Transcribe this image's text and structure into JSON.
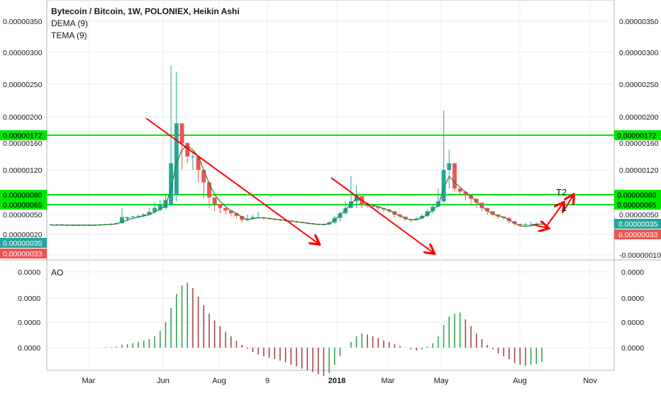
{
  "header": {
    "title": "Bytecoin / Bitcoin, 1W, POLONIEX, Heikin Ashi",
    "indicator_1": "DEMA (9)",
    "indicator_2": "TEMA (9)"
  },
  "ao_panel": {
    "label": "AO"
  },
  "colors": {
    "up": "#26a69a",
    "down": "#ef5350",
    "ma_line": "#2e7d32",
    "hline": "#00e600",
    "arrow": "#ff0000",
    "grid": "#e9edf2",
    "axis_text": "#131722"
  },
  "chart_data": [
    {
      "type": "candlestick",
      "name": "price",
      "ylim": [
        -1e-07,
        3.75e-06
      ],
      "y_ticks": [
        "0.00000350",
        "0.00000300",
        "0.00000250",
        "0.00000200",
        "0.00000160",
        "0.00000120",
        "0.00000080",
        "0.00000050",
        "0.00000020",
        "-0.00000010"
      ],
      "y_tick_values": [
        3.5e-06,
        3e-06,
        2.5e-06,
        2e-06,
        1.6e-06,
        1.2e-06,
        8e-07,
        5e-07,
        2e-07,
        -1e-07
      ],
      "x_ticks": [
        "Mar",
        "Jun",
        "Aug",
        "9",
        "2018",
        "Mar",
        "May",
        "Aug",
        "Nov"
      ],
      "horizontal_levels": [
        {
          "value": 1.72e-06,
          "label": "0.00000172"
        },
        {
          "value": 8e-07,
          "label": "0.00000080"
        },
        {
          "value": 6.5e-07,
          "label": "0.00000065"
        }
      ],
      "price_badges": [
        {
          "value": 3.5e-07,
          "label": "0.00000035",
          "kind": "up"
        },
        {
          "value": 3.3e-07,
          "label": "0.00000033",
          "kind": "down"
        }
      ],
      "annotations": [
        "T2",
        "1"
      ],
      "candles": [
        [
          3.4e-07,
          3.5e-07,
          3.6e-07,
          3.3e-07
        ],
        [
          3.5e-07,
          3.5e-07,
          3.6e-07,
          3.4e-07
        ],
        [
          3.5e-07,
          3.4e-07,
          3.6e-07,
          3.3e-07
        ],
        [
          3.4e-07,
          3.4e-07,
          3.5e-07,
          3.3e-07
        ],
        [
          3.4e-07,
          3.4e-07,
          3.5e-07,
          3.3e-07
        ],
        [
          3.4e-07,
          3.4e-07,
          3.5e-07,
          3.3e-07
        ],
        [
          3.4e-07,
          3.4e-07,
          3.5e-07,
          3.3e-07
        ],
        [
          3.4e-07,
          3.4e-07,
          3.5e-07,
          3.3e-07
        ],
        [
          3.4e-07,
          3.4e-07,
          3.5e-07,
          3.3e-07
        ],
        [
          3.4e-07,
          3.5e-07,
          3.6e-07,
          3.3e-07
        ],
        [
          3.5e-07,
          3.5e-07,
          3.6e-07,
          3.4e-07
        ],
        [
          3.5e-07,
          3.6e-07,
          3.7e-07,
          3.4e-07
        ],
        [
          3.6e-07,
          3.7e-07,
          3.8e-07,
          3.5e-07
        ],
        [
          3.7e-07,
          4.6e-07,
          6e-07,
          3.6e-07
        ],
        [
          4.4e-07,
          4.6e-07,
          4.7e-07,
          4e-07
        ],
        [
          4.6e-07,
          4.7e-07,
          4.8e-07,
          4.4e-07
        ],
        [
          4.7e-07,
          4.8e-07,
          5e-07,
          4.5e-07
        ],
        [
          4.8e-07,
          5e-07,
          5.2e-07,
          4.6e-07
        ],
        [
          5e-07,
          5.4e-07,
          6e-07,
          4.8e-07
        ],
        [
          5.4e-07,
          6e-07,
          6.9e-07,
          5.1e-07
        ],
        [
          5.7e-07,
          6.4e-07,
          7.2e-07,
          5.5e-07
        ],
        [
          6e-07,
          7.2e-07,
          8e-07,
          5.8e-07
        ],
        [
          6.4e-07,
          1.3e-06,
          2.8e-06,
          6.2e-07
        ],
        [
          8e-07,
          1.9e-06,
          2.7e-06,
          7e-07
        ],
        [
          1.9e-06,
          1.6e-06,
          1.7e-06,
          1.2e-06
        ],
        [
          1.6e-06,
          1.4e-06,
          1.55e-06,
          1.3e-06
        ],
        [
          1.4e-06,
          1.4e-06,
          1.45e-06,
          1.2e-06
        ],
        [
          1.4e-06,
          1.2e-06,
          1.3e-06,
          1e-06
        ],
        [
          1.2e-06,
          1e-06,
          1.1e-06,
          7.5e-07
        ],
        [
          1e-06,
          7.6e-07,
          8.5e-07,
          6e-07
        ],
        [
          7.6e-07,
          6.6e-07,
          7e-07,
          5.5e-07
        ],
        [
          6.6e-07,
          6e-07,
          6.5e-07,
          5.2e-07
        ],
        [
          6e-07,
          5.6e-07,
          6e-07,
          5e-07
        ],
        [
          5.6e-07,
          5.2e-07,
          5.4e-07,
          4.7e-07
        ],
        [
          5.2e-07,
          4.8e-07,
          5e-07,
          4.4e-07
        ],
        [
          4.8e-07,
          4.2e-07,
          4.5e-07,
          3.8e-07
        ],
        [
          4.2e-07,
          4.4e-07,
          5e-07,
          4e-07
        ],
        [
          4.4e-07,
          4.6e-07,
          4.9e-07,
          4.3e-07
        ],
        [
          4.6e-07,
          4.6e-07,
          5.4e-07,
          4.4e-07
        ],
        [
          4.6e-07,
          4.5e-07,
          4.6e-07,
          4.2e-07
        ],
        [
          4.5e-07,
          4.4e-07,
          4.5e-07,
          4.2e-07
        ],
        [
          4.4e-07,
          4.3e-07,
          4.4e-07,
          4.1e-07
        ],
        [
          4.3e-07,
          4.2e-07,
          4.3e-07,
          4e-07
        ],
        [
          4.2e-07,
          4.1e-07,
          4.2e-07,
          3.9e-07
        ],
        [
          4.1e-07,
          4e-07,
          4.1e-07,
          3.8e-07
        ],
        [
          4e-07,
          3.9e-07,
          4e-07,
          3.7e-07
        ],
        [
          3.9e-07,
          3.8e-07,
          3.9e-07,
          3.6e-07
        ],
        [
          3.8e-07,
          3.7e-07,
          3.8e-07,
          3.5e-07
        ],
        [
          3.7e-07,
          3.6e-07,
          3.7e-07,
          3.5e-07
        ],
        [
          3.6e-07,
          3.5e-07,
          3.6e-07,
          3.4e-07
        ],
        [
          3.5e-07,
          3.5e-07,
          3.6e-07,
          3.4e-07
        ],
        [
          3.5e-07,
          3.8e-07,
          4e-07,
          3.4e-07
        ],
        [
          3.8e-07,
          4.5e-07,
          4.8e-07,
          3.6e-07
        ],
        [
          4.5e-07,
          5.2e-07,
          5.5e-07,
          4e-07
        ],
        [
          5.2e-07,
          6e-07,
          7e-07,
          5e-07
        ],
        [
          6e-07,
          7e-07,
          1.1e-06,
          6e-07
        ],
        [
          7e-07,
          8e-07,
          9.5e-07,
          6e-07
        ],
        [
          7.8e-07,
          6.5e-07,
          7e-07,
          6e-07
        ],
        [
          6.5e-07,
          6.3e-07,
          6.8e-07,
          6e-07
        ],
        [
          6.3e-07,
          6.2e-07,
          6.4e-07,
          5.8e-07
        ],
        [
          6.2e-07,
          6e-07,
          6.3e-07,
          5.7e-07
        ],
        [
          6e-07,
          5.8e-07,
          6e-07,
          5.4e-07
        ],
        [
          5.8e-07,
          5.5e-07,
          5.8e-07,
          5.2e-07
        ],
        [
          5.5e-07,
          5e-07,
          5.3e-07,
          4.5e-07
        ],
        [
          5e-07,
          4.7e-07,
          5e-07,
          4.4e-07
        ],
        [
          4.7e-07,
          4.3e-07,
          4.5e-07,
          4e-07
        ],
        [
          4.3e-07,
          4.2e-07,
          4.4e-07,
          3.9e-07
        ],
        [
          4.2e-07,
          4.4e-07,
          4.6e-07,
          4.1e-07
        ],
        [
          4.4e-07,
          4.8e-07,
          5e-07,
          4.3e-07
        ],
        [
          4.8e-07,
          5.5e-07,
          5.8e-07,
          4.6e-07
        ],
        [
          5.5e-07,
          6.2e-07,
          6.5e-07,
          5.2e-07
        ],
        [
          6.2e-07,
          7e-07,
          9e-07,
          6e-07
        ],
        [
          7e-07,
          1.2e-06,
          2.1e-06,
          6.8e-07
        ],
        [
          1.2e-06,
          1.3e-06,
          1.5e-06,
          9e-07
        ],
        [
          1.3e-06,
          9e-07,
          1e-06,
          8.5e-07
        ],
        [
          9e-07,
          8.5e-07,
          9e-07,
          8e-07
        ],
        [
          8.5e-07,
          8e-07,
          8.5e-07,
          7.2e-07
        ],
        [
          8e-07,
          7.4e-07,
          7.8e-07,
          6.5e-07
        ],
        [
          7.4e-07,
          6.8e-07,
          7.2e-07,
          6e-07
        ],
        [
          6.8e-07,
          6e-07,
          6.5e-07,
          5.5e-07
        ],
        [
          6e-07,
          5.5e-07,
          5.8e-07,
          5e-07
        ],
        [
          5.5e-07,
          5e-07,
          5.4e-07,
          4.7e-07
        ],
        [
          5e-07,
          4.7e-07,
          5e-07,
          4.4e-07
        ],
        [
          4.7e-07,
          4.5e-07,
          4.7e-07,
          4.2e-07
        ],
        [
          4.5e-07,
          4e-07,
          4.3e-07,
          3.6e-07
        ],
        [
          4e-07,
          3.6e-07,
          3.9e-07,
          3.3e-07
        ],
        [
          3.6e-07,
          3.4e-07,
          3.6e-07,
          3.2e-07
        ],
        [
          3.4e-07,
          3.5e-07,
          3.8e-07,
          3.3e-07
        ],
        [
          3.5e-07,
          3.5e-07,
          3.9e-07,
          3.3e-07
        ],
        [
          3.5e-07,
          3.6e-07,
          3.8e-07,
          3.4e-07
        ],
        [
          3.6e-07,
          3.5e-07,
          3.6e-07,
          3.4e-07
        ]
      ],
      "ma_line": [
        3.4e-07,
        3.4e-07,
        3.4e-07,
        3.4e-07,
        3.4e-07,
        3.4e-07,
        3.4e-07,
        3.4e-07,
        3.4e-07,
        3.4e-07,
        3.5e-07,
        3.5e-07,
        3.6e-07,
        3.9e-07,
        4.2e-07,
        4.4e-07,
        4.6e-07,
        4.8e-07,
        5e-07,
        5.4e-07,
        5.8e-07,
        6.4e-07,
        9e-07,
        1.3e-06,
        1.5e-06,
        1.56e-06,
        1.5e-06,
        1.4e-06,
        1.2e-06,
        9.8e-07,
        8e-07,
        7e-07,
        6.2e-07,
        5.6e-07,
        5.2e-07,
        4.6e-07,
        4.2e-07,
        4.4e-07,
        4.5e-07,
        4.5e-07,
        4.4e-07,
        4.3e-07,
        4.2e-07,
        4.1e-07,
        4e-07,
        3.9e-07,
        3.8e-07,
        3.7e-07,
        3.6e-07,
        3.5e-07,
        3.5e-07,
        3.6e-07,
        4.2e-07,
        4.9e-07,
        5.7e-07,
        6.6e-07,
        7.4e-07,
        7.1e-07,
        6.7e-07,
        6.4e-07,
        6.2e-07,
        5.9e-07,
        5.6e-07,
        5.2e-07,
        4.8e-07,
        4.4e-07,
        4.2e-07,
        4.2e-07,
        4.5e-07,
        5e-07,
        5.7e-07,
        6.4e-07,
        9e-07,
        1.1e-06,
        1e-06,
        9.2e-07,
        8.4e-07,
        7.7e-07,
        7e-07,
        6.2e-07,
        5.6e-07,
        5.1e-07,
        4.8e-07,
        4.6e-07,
        4.2e-07,
        3.7e-07,
        3.3e-07,
        3.2e-07,
        3.3e-07,
        3.5e-07,
        3.6e-07
      ]
    },
    {
      "type": "histogram",
      "name": "AO",
      "y_ticks": [
        "0.0000",
        "0.0000",
        "0.0000",
        "0.0000"
      ],
      "values": [
        0,
        0,
        0,
        0,
        0,
        0,
        0,
        0,
        0,
        0,
        0.01,
        0.01,
        0.02,
        0.05,
        0.06,
        0.08,
        0.1,
        0.12,
        0.15,
        0.2,
        0.3,
        0.45,
        0.7,
        0.95,
        1.1,
        1.15,
        1.05,
        0.9,
        0.75,
        0.6,
        0.48,
        0.38,
        0.28,
        0.2,
        0.12,
        0.05,
        -0.02,
        -0.08,
        -0.12,
        -0.15,
        -0.18,
        -0.2,
        -0.23,
        -0.26,
        -0.3,
        -0.33,
        -0.37,
        -0.4,
        -0.43,
        -0.47,
        -0.5,
        -0.45,
        -0.3,
        -0.15,
        0.0,
        0.1,
        0.2,
        0.25,
        0.23,
        0.2,
        0.17,
        0.13,
        0.1,
        0.06,
        0.03,
        0.0,
        -0.03,
        -0.05,
        -0.03,
        0.02,
        0.08,
        0.2,
        0.4,
        0.55,
        0.6,
        0.62,
        0.5,
        0.38,
        0.25,
        0.15,
        0.05,
        -0.03,
        -0.1,
        -0.15,
        -0.2,
        -0.27,
        -0.3,
        -0.32,
        -0.3,
        -0.28,
        -0.25
      ]
    }
  ]
}
